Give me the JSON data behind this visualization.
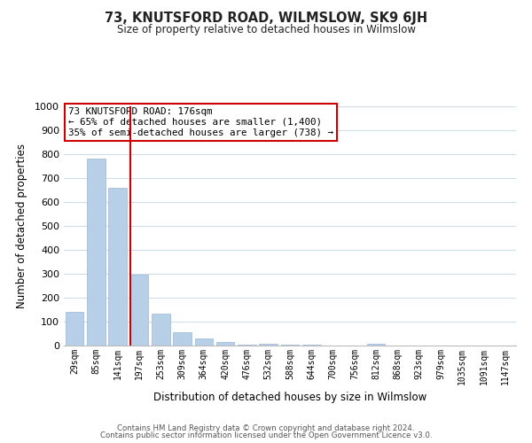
{
  "title": "73, KNUTSFORD ROAD, WILMSLOW, SK9 6JH",
  "subtitle": "Size of property relative to detached houses in Wilmslow",
  "xlabel": "Distribution of detached houses by size in Wilmslow",
  "ylabel": "Number of detached properties",
  "bar_color": "#b8cfe8",
  "bar_edge_color": "#9ab5d5",
  "vline_color": "#cc0000",
  "categories": [
    "29sqm",
    "85sqm",
    "141sqm",
    "197sqm",
    "253sqm",
    "309sqm",
    "364sqm",
    "420sqm",
    "476sqm",
    "532sqm",
    "588sqm",
    "644sqm",
    "700sqm",
    "756sqm",
    "812sqm",
    "868sqm",
    "923sqm",
    "979sqm",
    "1035sqm",
    "1091sqm",
    "1147sqm"
  ],
  "values": [
    140,
    780,
    660,
    295,
    133,
    55,
    30,
    15,
    5,
    8,
    5,
    3,
    0,
    0,
    8,
    0,
    0,
    0,
    0,
    0,
    0
  ],
  "ylim": [
    0,
    1000
  ],
  "yticks": [
    0,
    100,
    200,
    300,
    400,
    500,
    600,
    700,
    800,
    900,
    1000
  ],
  "vline_pos": 2.575,
  "annotation_title": "73 KNUTSFORD ROAD: 176sqm",
  "annotation_line1": "← 65% of detached houses are smaller (1,400)",
  "annotation_line2": "35% of semi-detached houses are larger (738) →",
  "annotation_box_color": "#ffffff",
  "annotation_box_edgecolor": "#cc0000",
  "footer_line1": "Contains HM Land Registry data © Crown copyright and database right 2024.",
  "footer_line2": "Contains public sector information licensed under the Open Government Licence v3.0.",
  "background_color": "#ffffff",
  "grid_color": "#d0dcea"
}
